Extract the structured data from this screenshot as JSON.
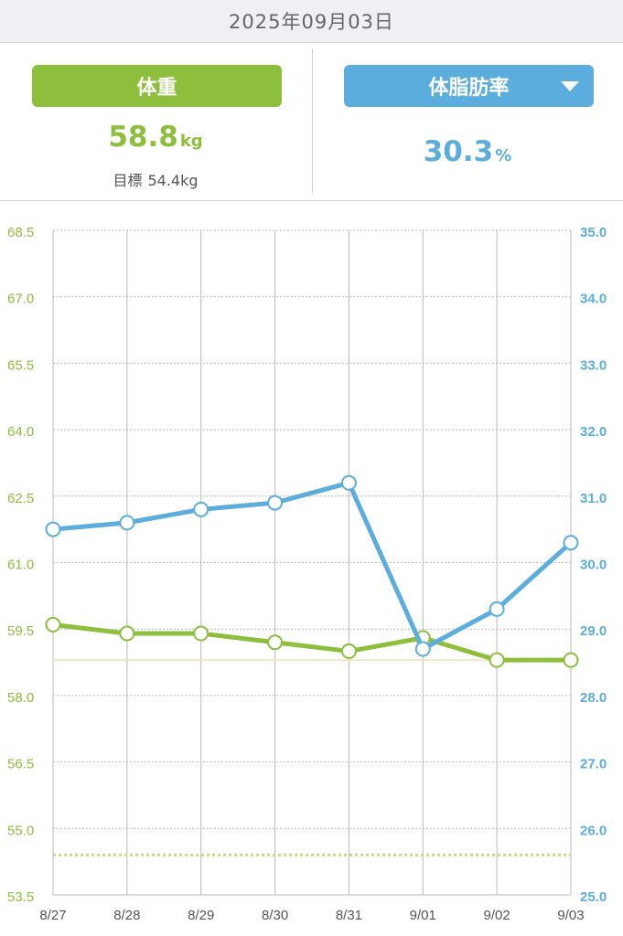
{
  "header": {
    "date": "2025年09月03日"
  },
  "left_panel": {
    "button_label": "体重",
    "value": "58.8",
    "unit": "kg",
    "goal_label": "目標",
    "goal_value": "54.4kg"
  },
  "right_panel": {
    "button_label": "体脂肪率",
    "dropdown_icon": "caret-down-icon",
    "value": "30.3",
    "unit": "%"
  },
  "colors": {
    "weight": "#8dbf3c",
    "body_fat": "#5aaddd",
    "grid": "#b9b9b9",
    "goal_line": "#c6dc8a",
    "current_line": "#efe2b6"
  },
  "chart_data": {
    "type": "line",
    "categories": [
      "8/27",
      "8/28",
      "8/29",
      "8/30",
      "8/31",
      "9/01",
      "9/02",
      "9/03"
    ],
    "series": [
      {
        "name": "体重",
        "axis": "left",
        "values": [
          59.6,
          59.4,
          59.4,
          59.2,
          59.0,
          59.3,
          58.8,
          58.8
        ]
      },
      {
        "name": "体脂肪率",
        "axis": "right",
        "values": [
          30.5,
          30.6,
          30.8,
          30.9,
          31.2,
          28.7,
          29.3,
          30.3
        ]
      }
    ],
    "y_left": {
      "min": 53.5,
      "max": 68.5,
      "ticks": [
        "68.5",
        "67.0",
        "65.5",
        "64.0",
        "62.5",
        "61.0",
        "59.5",
        "58.0",
        "56.5",
        "55.0",
        "53.5"
      ]
    },
    "y_right": {
      "min": 25.0,
      "max": 35.0,
      "ticks": [
        "35.0",
        "34.0",
        "33.0",
        "32.0",
        "31.0",
        "30.0",
        "29.0",
        "28.0",
        "27.0",
        "26.0",
        "25.0"
      ]
    },
    "reference_lines": [
      {
        "name": "goal",
        "axis": "left",
        "value": 54.4,
        "style": "dotted"
      },
      {
        "name": "current",
        "axis": "left",
        "value": 58.8,
        "style": "solid"
      }
    ],
    "grid": true
  }
}
